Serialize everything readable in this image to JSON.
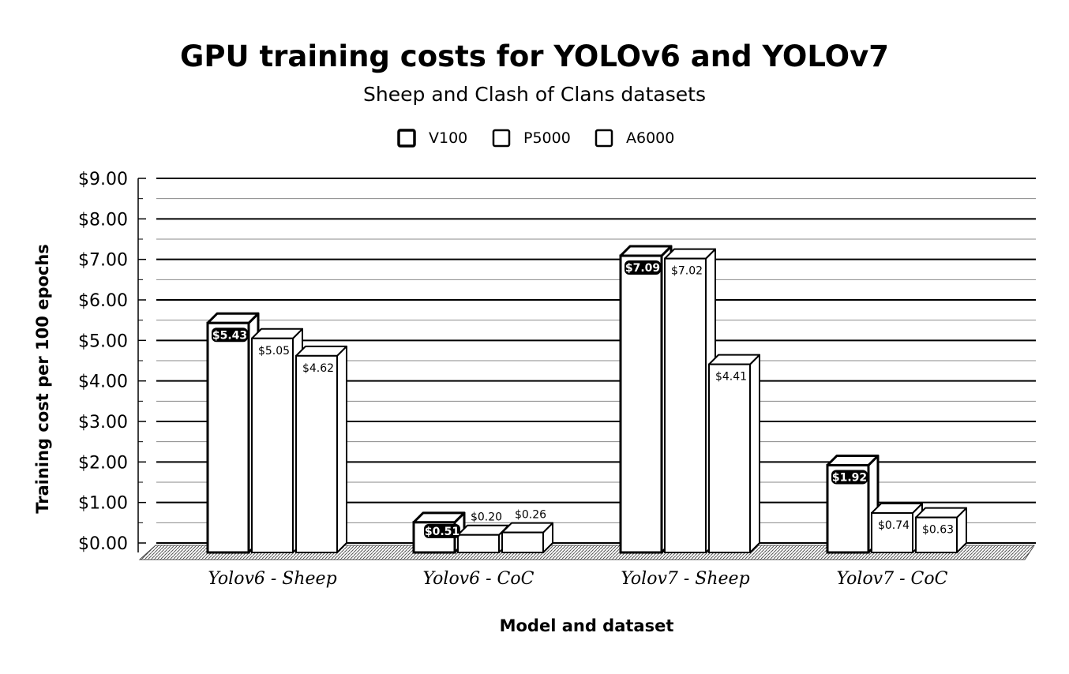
{
  "chart_data": {
    "type": "bar",
    "title": "GPU training costs for YOLOv6 and YOLOv7",
    "subtitle": "Sheep and Clash of Clans datasets",
    "xlabel": "Model and dataset",
    "ylabel": "Training cost per 100 epochs",
    "categories": [
      "Yolov6 - Sheep",
      "Yolov6 - CoC",
      "Yolov7 - Sheep",
      "Yolov7 - CoC"
    ],
    "series": [
      {
        "name": "V100",
        "values": [
          5.43,
          0.51,
          7.09,
          1.92
        ],
        "labels": [
          "$5.43",
          "$0.51",
          "$7.09",
          "$1.92"
        ]
      },
      {
        "name": "P5000",
        "values": [
          5.05,
          0.2,
          7.02,
          0.74
        ],
        "labels": [
          "$5.05",
          "$0.20",
          "$7.02",
          "$0.74"
        ]
      },
      {
        "name": "A6000",
        "values": [
          4.62,
          0.26,
          4.41,
          0.63
        ],
        "labels": [
          "$4.62",
          "$0.26",
          "$4.41",
          "$0.63"
        ]
      }
    ],
    "yticks": [
      "$0.00",
      "$1.00",
      "$2.00",
      "$3.00",
      "$4.00",
      "$5.00",
      "$6.00",
      "$7.00",
      "$8.00",
      "$9.00"
    ],
    "ylim": [
      0,
      9
    ],
    "grid": true,
    "legend_position": "top-center",
    "style": "3d-bars"
  }
}
